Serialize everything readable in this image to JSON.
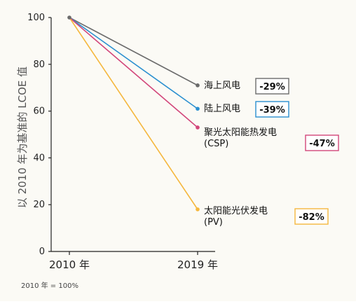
{
  "chart_data": {
    "type": "line",
    "ylabel": "以 2010 年为基准的 LCOE 值",
    "x": [
      "2010 年",
      "2019 年"
    ],
    "ylim": [
      0,
      100
    ],
    "yticks": [
      0,
      20,
      40,
      60,
      80,
      100
    ],
    "note": "2010 年 = 100%",
    "series": [
      {
        "name": "海上风电",
        "label_lines": [
          "海上风电"
        ],
        "values": [
          100,
          71
        ],
        "change": "-29%",
        "color": "#6b6b6b"
      },
      {
        "name": "陆上风电",
        "label_lines": [
          "陆上风电"
        ],
        "values": [
          100,
          61
        ],
        "change": "-39%",
        "color": "#2a8fd0"
      },
      {
        "name": "聚光太阳能热发电 (CSP)",
        "label_lines": [
          "聚光太阳能热发电",
          "(CSP)"
        ],
        "values": [
          100,
          53
        ],
        "change": "-47%",
        "color": "#d2467a"
      },
      {
        "name": "太阳能光伏发电 (PV)",
        "label_lines": [
          "太阳能光伏发电",
          "(PV)"
        ],
        "values": [
          100,
          18
        ],
        "change": "-82%",
        "color": "#f5b73d"
      }
    ]
  }
}
